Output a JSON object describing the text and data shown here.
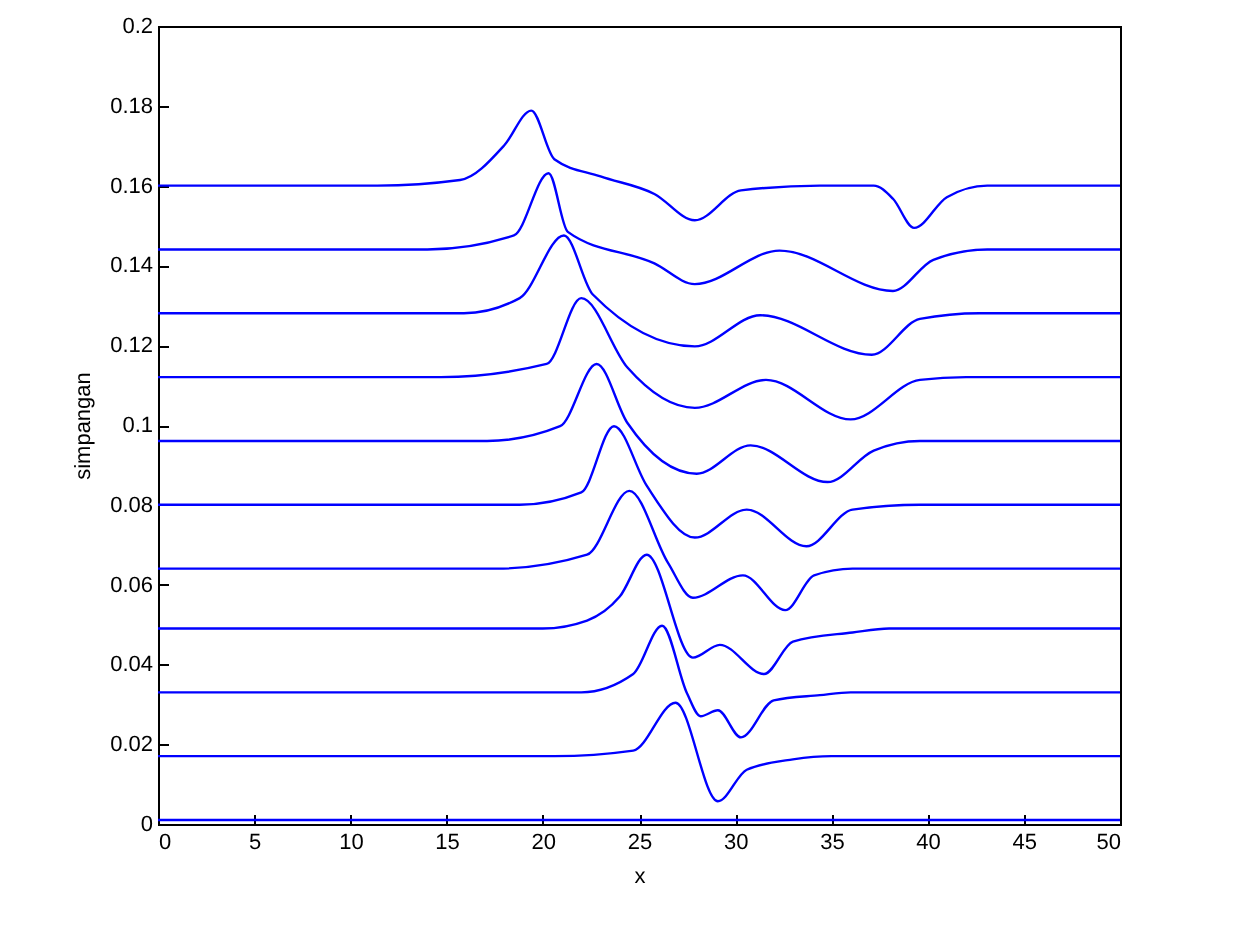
{
  "chart_data": {
    "type": "line",
    "xlabel": "x",
    "ylabel": "simpangan",
    "xlim": [
      0,
      50
    ],
    "ylim": [
      0,
      0.2
    ],
    "xticks": [
      0,
      5,
      10,
      15,
      20,
      25,
      30,
      35,
      40,
      45,
      50
    ],
    "yticks": [
      0,
      0.02,
      0.04,
      0.06,
      0.08,
      0.1,
      0.12,
      0.14,
      0.16,
      0.18,
      0.2
    ],
    "grid": false,
    "line_style": "solid",
    "marker": "none",
    "series": [
      {
        "color": "#0000ff",
        "x": [
          0,
          50
        ],
        "values": [
          0.001,
          0.001
        ]
      },
      {
        "color": "#0000ff",
        "x": [
          0,
          20.6,
          24.7,
          26.9,
          29.1,
          30.6,
          33,
          35,
          50
        ],
        "values": [
          0.017,
          0.017,
          0.0184,
          0.0304,
          0.0057,
          0.0136,
          0.0162,
          0.017,
          0.017
        ]
      },
      {
        "color": "#0000ff",
        "x": [
          0,
          22,
          24.7,
          26.2,
          27.5,
          28.2,
          29.1,
          30.3,
          32,
          34.4,
          36,
          50
        ],
        "values": [
          0.033,
          0.033,
          0.0376,
          0.0497,
          0.0327,
          0.027,
          0.0285,
          0.0217,
          0.031,
          0.0323,
          0.033,
          0.033
        ]
      },
      {
        "color": "#0000ff",
        "x": [
          0,
          20,
          22.3,
          24,
          25.4,
          27.8,
          29.2,
          31.5,
          33,
          36.1,
          38,
          50
        ],
        "values": [
          0.049,
          0.049,
          0.051,
          0.057,
          0.0675,
          0.0417,
          0.0449,
          0.0376,
          0.0457,
          0.048,
          0.049,
          0.049
        ]
      },
      {
        "color": "#0000ff",
        "x": [
          0,
          17.6,
          22.3,
          24.5,
          26.5,
          27.8,
          30.4,
          32.6,
          34.1,
          36.1,
          38,
          50
        ],
        "values": [
          0.064,
          0.064,
          0.0675,
          0.0835,
          0.0655,
          0.0567,
          0.0623,
          0.0536,
          0.0623,
          0.064,
          0.064,
          0.064
        ]
      },
      {
        "color": "#0000ff",
        "x": [
          0,
          18.8,
          22,
          23.7,
          25.4,
          27.9,
          30.6,
          33.7,
          36.1,
          39.6,
          50
        ],
        "values": [
          0.08,
          0.08,
          0.0831,
          0.0997,
          0.0848,
          0.0718,
          0.0788,
          0.0696,
          0.0788,
          0.08,
          0.08
        ]
      },
      {
        "color": "#0000ff",
        "x": [
          0,
          17.1,
          20.9,
          22.8,
          24.4,
          28,
          30.8,
          34.8,
          37.2,
          39.6,
          50
        ],
        "values": [
          0.096,
          0.096,
          0.0997,
          0.1153,
          0.1005,
          0.0878,
          0.0949,
          0.0857,
          0.0936,
          0.096,
          0.096
        ]
      },
      {
        "color": "#0000ff",
        "x": [
          0,
          14.7,
          20.2,
          22,
          24.4,
          27.9,
          31.6,
          36,
          39.6,
          42,
          50
        ],
        "values": [
          0.112,
          0.112,
          0.1153,
          0.1318,
          0.1144,
          0.1043,
          0.1113,
          0.1014,
          0.1113,
          0.112,
          0.112
        ]
      },
      {
        "color": "#0000ff",
        "x": [
          0,
          15.9,
          18.8,
          21.1,
          22.6,
          27.9,
          31.3,
          37.1,
          39.6,
          42.7,
          50
        ],
        "values": [
          0.128,
          0.128,
          0.1318,
          0.1475,
          0.1327,
          0.1197,
          0.1275,
          0.1176,
          0.1266,
          0.128,
          0.128
        ]
      },
      {
        "color": "#0000ff",
        "x": [
          0,
          14,
          18.5,
          20.3,
          21.3,
          25.8,
          27.9,
          32.3,
          38.2,
          40.3,
          43.1,
          50
        ],
        "values": [
          0.144,
          0.144,
          0.1475,
          0.1631,
          0.1484,
          0.1405,
          0.1353,
          0.1437,
          0.1336,
          0.1414,
          0.144,
          0.144
        ]
      },
      {
        "color": "#0000ff",
        "x": [
          0,
          11.4,
          15.7,
          18,
          19.4,
          20.6,
          23,
          25.8,
          27.9,
          30.3,
          34.4,
          37.2,
          38.2,
          39.3,
          41,
          43.1,
          50
        ],
        "values": [
          0.16,
          0.16,
          0.1614,
          0.1701,
          0.1788,
          0.1666,
          0.1623,
          0.1579,
          0.1513,
          0.1588,
          0.16,
          0.16,
          0.1567,
          0.1494,
          0.1571,
          0.16,
          0.16
        ]
      }
    ]
  }
}
